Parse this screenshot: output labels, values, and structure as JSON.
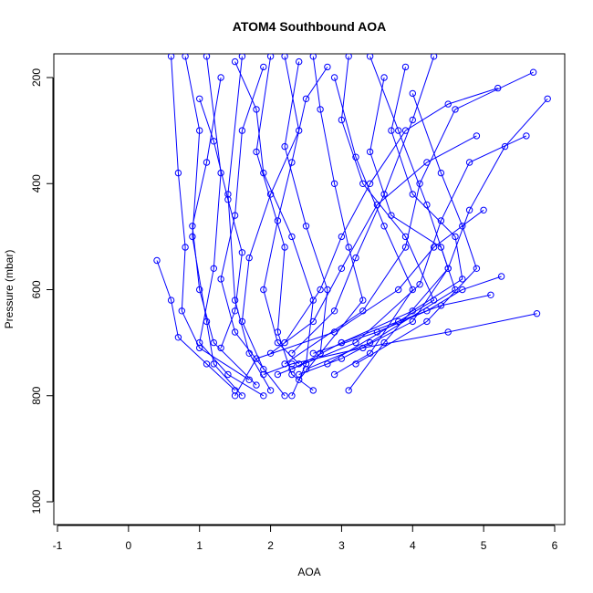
{
  "chart_data": {
    "type": "line",
    "title": "ATOM4 Southbound AOA",
    "xlabel": "AOA",
    "ylabel": "Pressure (mbar)",
    "xlim": [
      -1,
      6
    ],
    "ylim": [
      1040,
      150
    ],
    "y_reversed": true,
    "xticks": [
      "-1",
      "0",
      "1",
      "2",
      "3",
      "4",
      "5",
      "6"
    ],
    "yticks": [
      "200",
      "400",
      "600",
      "800",
      "1000"
    ],
    "grid": false,
    "marker": "open-circle",
    "color": "#0000ff",
    "series": [
      {
        "points": [
          [
            0.8,
            160
          ],
          [
            1.0,
            300
          ],
          [
            0.9,
            500
          ],
          [
            1.1,
            660
          ],
          [
            1.2,
            740
          ],
          [
            1.6,
            800
          ]
        ]
      },
      {
        "points": [
          [
            1.1,
            160
          ],
          [
            1.3,
            380
          ],
          [
            1.2,
            560
          ],
          [
            1.0,
            700
          ],
          [
            1.4,
            760
          ],
          [
            1.9,
            800
          ]
        ]
      },
      {
        "points": [
          [
            1.6,
            160
          ],
          [
            1.4,
            420
          ],
          [
            1.5,
            620
          ],
          [
            1.7,
            720
          ],
          [
            2.0,
            790
          ]
        ]
      },
      {
        "points": [
          [
            2.0,
            160
          ],
          [
            1.8,
            340
          ],
          [
            2.2,
            520
          ],
          [
            2.1,
            680
          ],
          [
            2.3,
            760
          ],
          [
            2.6,
            790
          ]
        ]
      },
      {
        "points": [
          [
            2.4,
            170
          ],
          [
            2.2,
            330
          ],
          [
            2.5,
            480
          ],
          [
            2.8,
            600
          ],
          [
            2.7,
            720
          ],
          [
            2.4,
            770
          ]
        ]
      },
      {
        "points": [
          [
            2.9,
            200
          ],
          [
            3.2,
            350
          ],
          [
            3.6,
            480
          ],
          [
            4.0,
            600
          ],
          [
            3.4,
            720
          ],
          [
            2.9,
            760
          ]
        ]
      },
      {
        "points": [
          [
            3.4,
            160
          ],
          [
            3.8,
            300
          ],
          [
            4.2,
            440
          ],
          [
            4.5,
            560
          ],
          [
            3.6,
            700
          ],
          [
            3.1,
            790
          ]
        ]
      },
      {
        "points": [
          [
            4.0,
            230
          ],
          [
            4.4,
            380
          ],
          [
            4.7,
            480
          ],
          [
            4.9,
            560
          ],
          [
            4.2,
            660
          ],
          [
            3.2,
            740
          ]
        ]
      },
      {
        "points": [
          [
            5.9,
            240
          ],
          [
            5.3,
            330
          ],
          [
            4.8,
            450
          ],
          [
            4.5,
            560
          ],
          [
            4.0,
            660
          ],
          [
            3.0,
            730
          ],
          [
            2.4,
            760
          ]
        ]
      },
      {
        "points": [
          [
            5.7,
            190
          ],
          [
            4.6,
            260
          ],
          [
            4.1,
            400
          ],
          [
            3.9,
            520
          ],
          [
            3.3,
            640
          ],
          [
            2.2,
            740
          ]
        ]
      },
      {
        "points": [
          [
            5.6,
            310
          ],
          [
            4.8,
            360
          ],
          [
            4.4,
            470
          ],
          [
            4.1,
            590
          ],
          [
            3.2,
            700
          ],
          [
            2.1,
            760
          ]
        ]
      },
      {
        "points": [
          [
            5.75,
            645
          ],
          [
            4.5,
            680
          ],
          [
            3.3,
            710
          ],
          [
            2.3,
            740
          ],
          [
            1.9,
            760
          ]
        ]
      },
      {
        "points": [
          [
            5.0,
            450
          ],
          [
            4.3,
            520
          ],
          [
            3.8,
            600
          ],
          [
            2.9,
            680
          ],
          [
            1.8,
            730
          ],
          [
            1.5,
            800
          ]
        ]
      },
      {
        "points": [
          [
            0.4,
            545
          ],
          [
            0.6,
            620
          ],
          [
            0.7,
            690
          ],
          [
            1.1,
            740
          ],
          [
            1.5,
            790
          ]
        ]
      },
      {
        "points": [
          [
            0.6,
            160
          ],
          [
            0.7,
            380
          ],
          [
            0.8,
            520
          ],
          [
            0.75,
            640
          ],
          [
            1.0,
            710
          ],
          [
            1.7,
            770
          ]
        ]
      },
      {
        "points": [
          [
            1.3,
            200
          ],
          [
            1.1,
            360
          ],
          [
            0.9,
            480
          ],
          [
            1.0,
            600
          ],
          [
            1.2,
            700
          ],
          [
            1.8,
            780
          ]
        ]
      },
      {
        "points": [
          [
            1.9,
            180
          ],
          [
            1.6,
            300
          ],
          [
            1.5,
            460
          ],
          [
            1.3,
            580
          ],
          [
            1.5,
            680
          ],
          [
            2.2,
            800
          ]
        ]
      },
      {
        "points": [
          [
            2.6,
            160
          ],
          [
            2.7,
            260
          ],
          [
            2.9,
            400
          ],
          [
            3.1,
            520
          ],
          [
            3.3,
            620
          ],
          [
            2.7,
            720
          ]
        ]
      },
      {
        "points": [
          [
            3.1,
            160
          ],
          [
            3.0,
            280
          ],
          [
            3.3,
            400
          ],
          [
            3.9,
            500
          ],
          [
            4.3,
            620
          ],
          [
            2.8,
            740
          ]
        ]
      },
      {
        "points": [
          [
            3.6,
            200
          ],
          [
            3.4,
            340
          ],
          [
            3.7,
            460
          ],
          [
            4.4,
            520
          ],
          [
            4.6,
            600
          ],
          [
            3.4,
            700
          ],
          [
            2.5,
            750
          ]
        ]
      },
      {
        "points": [
          [
            4.3,
            160
          ],
          [
            4.0,
            280
          ],
          [
            3.6,
            420
          ],
          [
            3.2,
            540
          ],
          [
            2.9,
            640
          ],
          [
            2.3,
            720
          ]
        ]
      },
      {
        "points": [
          [
            2.2,
            160
          ],
          [
            2.4,
            300
          ],
          [
            2.0,
            420
          ],
          [
            1.7,
            540
          ],
          [
            1.6,
            660
          ],
          [
            1.9,
            750
          ]
        ]
      },
      {
        "points": [
          [
            1.5,
            170
          ],
          [
            1.8,
            260
          ],
          [
            1.9,
            380
          ],
          [
            2.3,
            500
          ],
          [
            2.6,
            620
          ],
          [
            2.5,
            740
          ],
          [
            2.3,
            800
          ]
        ]
      },
      {
        "points": [
          [
            3.9,
            180
          ],
          [
            3.7,
            300
          ],
          [
            4.0,
            420
          ],
          [
            4.6,
            500
          ],
          [
            4.7,
            580
          ],
          [
            4.0,
            640
          ],
          [
            3.0,
            700
          ]
        ]
      },
      {
        "points": [
          [
            5.25,
            575
          ],
          [
            4.7,
            600
          ],
          [
            4.2,
            640
          ],
          [
            3.5,
            680
          ],
          [
            2.6,
            720
          ]
        ]
      },
      {
        "points": [
          [
            5.1,
            610
          ],
          [
            4.4,
            630
          ],
          [
            3.8,
            660
          ],
          [
            3.0,
            700
          ],
          [
            2.3,
            750
          ]
        ]
      },
      {
        "points": [
          [
            2.8,
            180
          ],
          [
            2.5,
            240
          ],
          [
            2.3,
            360
          ],
          [
            2.1,
            470
          ],
          [
            1.9,
            600
          ],
          [
            2.1,
            700
          ],
          [
            2.4,
            740
          ]
        ]
      },
      {
        "points": [
          [
            1.0,
            240
          ],
          [
            1.2,
            320
          ],
          [
            1.4,
            430
          ],
          [
            1.6,
            530
          ],
          [
            1.5,
            640
          ],
          [
            1.3,
            710
          ]
        ]
      },
      {
        "points": [
          [
            4.9,
            310
          ],
          [
            4.2,
            360
          ],
          [
            3.5,
            440
          ],
          [
            3.0,
            560
          ],
          [
            2.6,
            660
          ],
          [
            2.0,
            720
          ]
        ]
      },
      {
        "points": [
          [
            5.2,
            220
          ],
          [
            4.5,
            250
          ],
          [
            3.9,
            300
          ],
          [
            3.4,
            400
          ],
          [
            3.0,
            500
          ],
          [
            2.7,
            600
          ],
          [
            2.2,
            700
          ]
        ]
      }
    ]
  }
}
